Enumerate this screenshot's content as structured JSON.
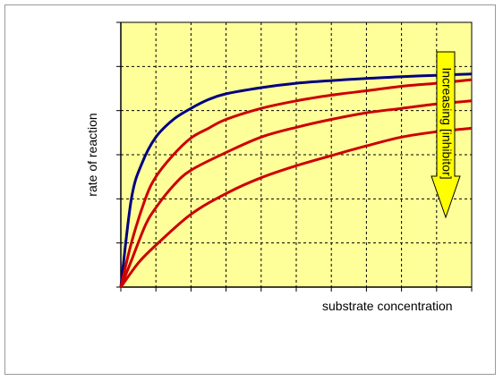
{
  "chart_data": {
    "type": "line",
    "title": "",
    "xlabel": "substrate concentration",
    "ylabel": "rate of reaction",
    "xlim": [
      0,
      10
    ],
    "ylim": [
      0,
      6
    ],
    "grid": true,
    "annotation": "Increasing [inhibitor]",
    "colors": {
      "plot_background": "#FFFF99",
      "no_inhibitor": "#000080",
      "inhibited": "#CC0000",
      "arrow_fill": "#FFFF00",
      "grid": "#000000"
    },
    "series": [
      {
        "color": "#000080",
        "points": [
          [
            0,
            0
          ],
          [
            0.3,
            2.0
          ],
          [
            0.6,
            2.8
          ],
          [
            1,
            3.4
          ],
          [
            1.5,
            3.8
          ],
          [
            2,
            4.05
          ],
          [
            2.5,
            4.25
          ],
          [
            3,
            4.38
          ],
          [
            4,
            4.52
          ],
          [
            5,
            4.62
          ],
          [
            6,
            4.68
          ],
          [
            7,
            4.73
          ],
          [
            8,
            4.77
          ],
          [
            9,
            4.8
          ],
          [
            10,
            4.83
          ]
        ]
      },
      {
        "color": "#CC0000",
        "points": [
          [
            0,
            0
          ],
          [
            0.3,
            1.0
          ],
          [
            0.7,
            2.0
          ],
          [
            1,
            2.5
          ],
          [
            1.5,
            3.0
          ],
          [
            2,
            3.38
          ],
          [
            2.5,
            3.6
          ],
          [
            3,
            3.8
          ],
          [
            4,
            4.05
          ],
          [
            5,
            4.22
          ],
          [
            6,
            4.35
          ],
          [
            7,
            4.45
          ],
          [
            8,
            4.55
          ],
          [
            9,
            4.62
          ],
          [
            10,
            4.7
          ]
        ]
      },
      {
        "color": "#CC0000",
        "points": [
          [
            0,
            0
          ],
          [
            0.3,
            0.6
          ],
          [
            0.7,
            1.4
          ],
          [
            1,
            1.8
          ],
          [
            1.5,
            2.3
          ],
          [
            2,
            2.65
          ],
          [
            3,
            3.05
          ],
          [
            4,
            3.4
          ],
          [
            5,
            3.62
          ],
          [
            6,
            3.8
          ],
          [
            7,
            3.95
          ],
          [
            8,
            4.05
          ],
          [
            9,
            4.15
          ],
          [
            10,
            4.22
          ]
        ]
      },
      {
        "color": "#CC0000",
        "points": [
          [
            0,
            0
          ],
          [
            0.5,
            0.55
          ],
          [
            1,
            0.95
          ],
          [
            2,
            1.65
          ],
          [
            3,
            2.12
          ],
          [
            4,
            2.48
          ],
          [
            5,
            2.75
          ],
          [
            6,
            2.98
          ],
          [
            7,
            3.2
          ],
          [
            8,
            3.4
          ],
          [
            9,
            3.52
          ],
          [
            10,
            3.6
          ]
        ]
      }
    ]
  }
}
